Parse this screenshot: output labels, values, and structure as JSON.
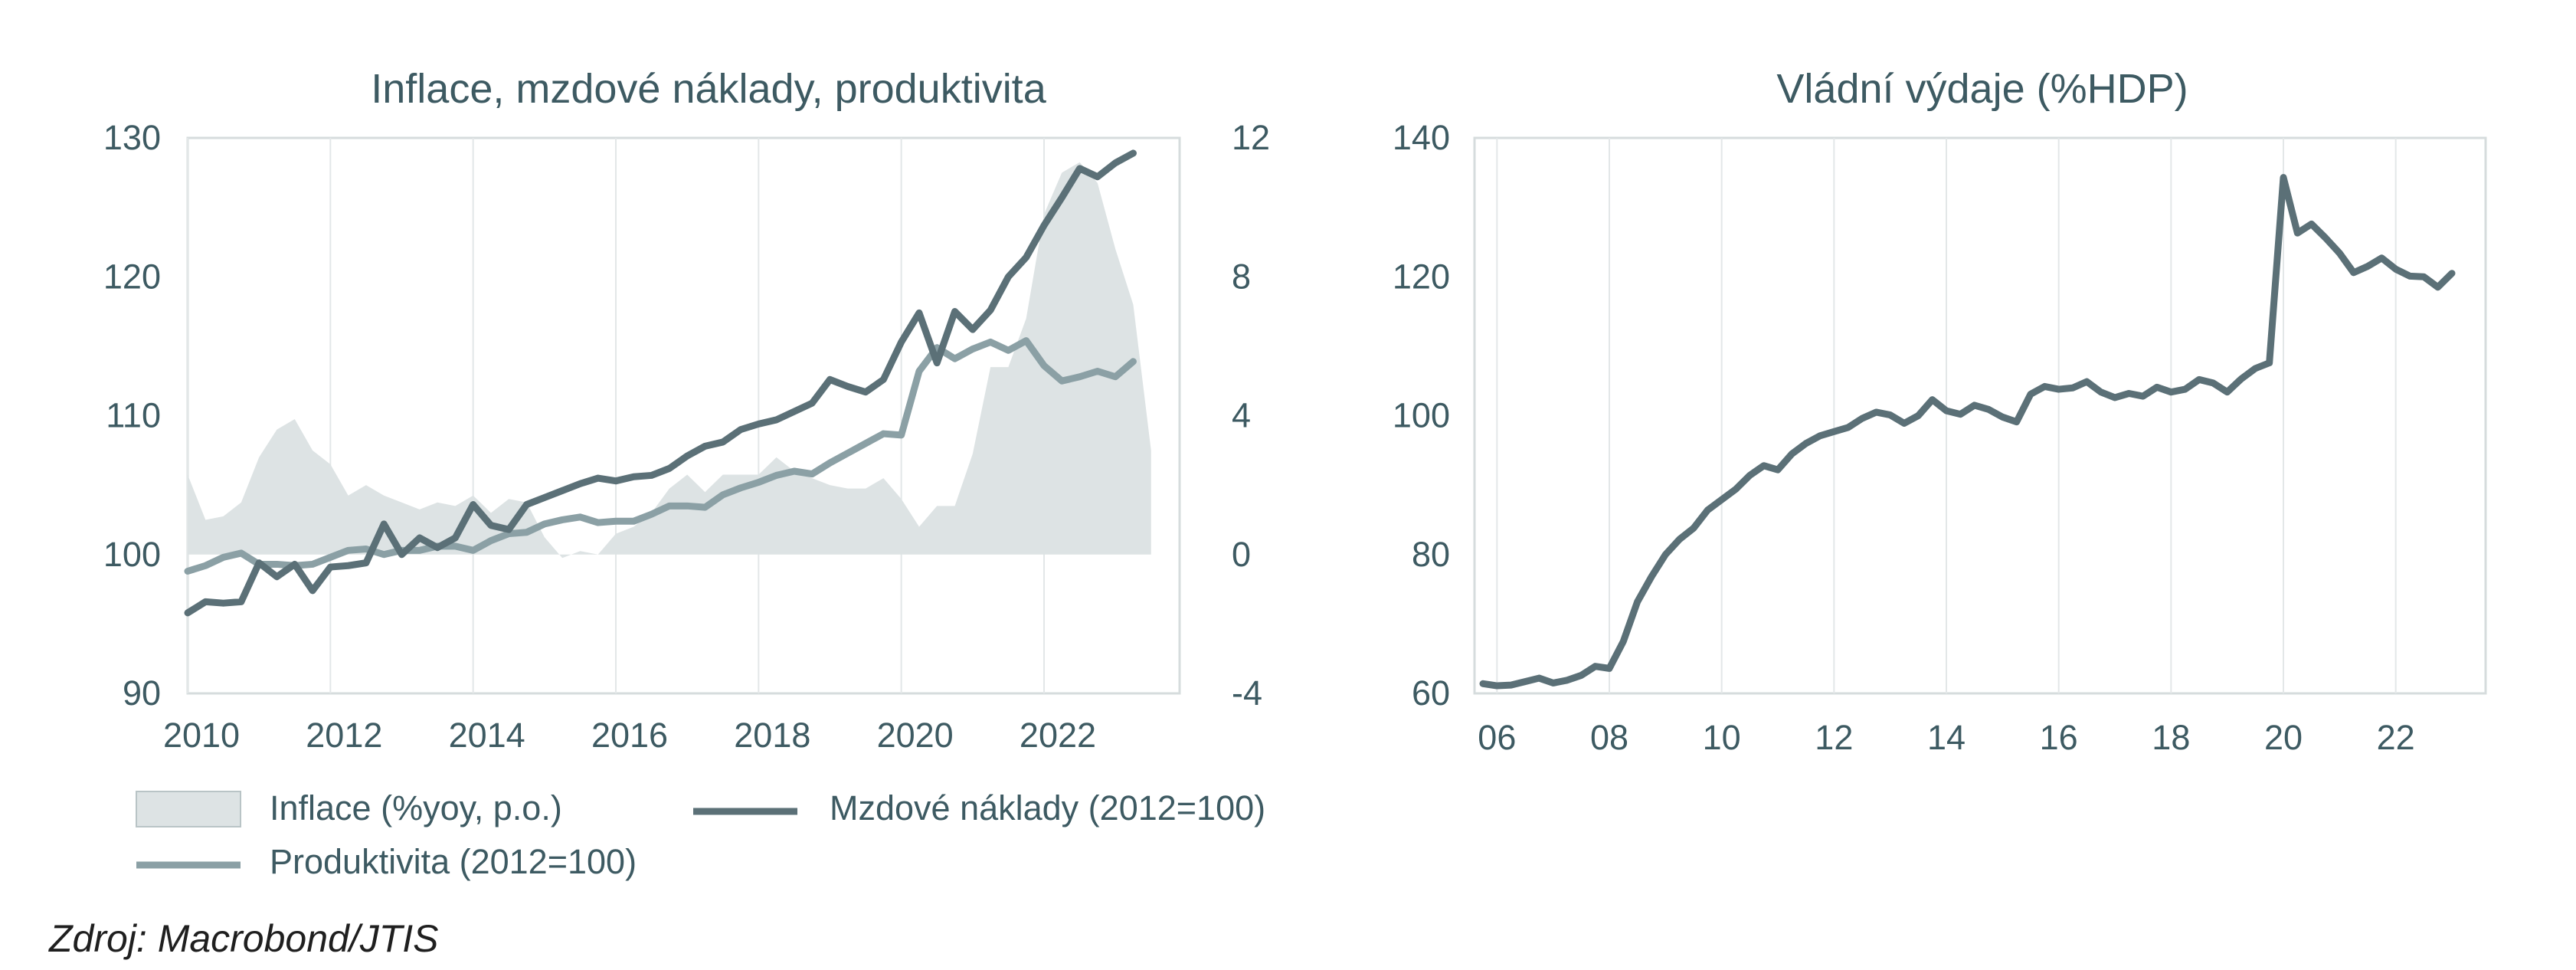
{
  "source_note": "Zdroj: Macrobond/JTIS",
  "colors": {
    "axis_text": "#3d5a62",
    "wage_line": "#5b7077",
    "productivity_line": "#8ba0a5",
    "inflation_fill": "#dde3e4",
    "grid": "#e3e7e8",
    "frame": "#d6dcdd"
  },
  "chart_data": [
    {
      "type": "line",
      "title": "Inflace, mzdové náklady, produktivita",
      "xlim": [
        2010.0,
        2023.9
      ],
      "x_ticks": [
        2010,
        2012,
        2014,
        2016,
        2018,
        2020,
        2022
      ],
      "x_tick_labels": [
        "2010",
        "2012",
        "2014",
        "2016",
        "2018",
        "2020",
        "2022"
      ],
      "ylim": [
        90,
        130
      ],
      "y_ticks": [
        90,
        100,
        110,
        120,
        130
      ],
      "y_tick_labels": [
        "90",
        "100",
        "110",
        "120",
        "130"
      ],
      "y2lim": [
        -4,
        12
      ],
      "y2_ticks": [
        -4,
        0,
        4,
        8,
        12
      ],
      "y2_tick_labels": [
        "-4",
        "0",
        "4",
        "8",
        "12"
      ],
      "grid": true,
      "legend_position": "bottom",
      "legend": [
        {
          "label": "Inflace (%yoy, p.o.)",
          "kind": "area"
        },
        {
          "label": "Mzdové náklady (2012=100)",
          "kind": "line-dark"
        },
        {
          "label": "Produktivita (2012=100)",
          "kind": "line-light"
        }
      ],
      "series": [
        {
          "name": "Inflace (%yoy, p.o.)",
          "type": "area",
          "axis": "right",
          "x": [
            2010.0,
            2010.25,
            2010.5,
            2010.75,
            2011.0,
            2011.25,
            2011.5,
            2011.75,
            2012.0,
            2012.25,
            2012.5,
            2012.75,
            2013.0,
            2013.25,
            2013.5,
            2013.75,
            2014.0,
            2014.25,
            2014.5,
            2014.75,
            2015.0,
            2015.25,
            2015.5,
            2015.75,
            2016.0,
            2016.25,
            2016.5,
            2016.75,
            2017.0,
            2017.25,
            2017.5,
            2017.75,
            2018.0,
            2018.25,
            2018.5,
            2018.75,
            2019.0,
            2019.25,
            2019.5,
            2019.75,
            2020.0,
            2020.25,
            2020.5,
            2020.75,
            2021.0,
            2021.25,
            2021.5,
            2021.75,
            2022.0,
            2022.25,
            2022.5,
            2022.75,
            2023.0,
            2023.25,
            2023.5
          ],
          "values": [
            2.3,
            1.0,
            1.1,
            1.5,
            2.8,
            3.6,
            3.9,
            3.0,
            2.6,
            1.7,
            2.0,
            1.7,
            1.5,
            1.3,
            1.5,
            1.4,
            1.7,
            1.2,
            1.6,
            1.5,
            0.5,
            -0.1,
            0.1,
            0.0,
            0.6,
            0.8,
            1.2,
            1.9,
            2.3,
            1.8,
            2.3,
            2.3,
            2.3,
            2.8,
            2.4,
            2.2,
            2.0,
            1.9,
            1.9,
            2.2,
            1.6,
            0.8,
            1.4,
            1.4,
            2.9,
            5.4,
            5.4,
            6.8,
            9.8,
            11.0,
            11.3,
            10.7,
            8.8,
            7.2,
            3.0
          ]
        },
        {
          "name": "Mzdové náklady (2012=100)",
          "type": "line",
          "axis": "left",
          "x": [
            2010.0,
            2010.25,
            2010.5,
            2010.75,
            2011.0,
            2011.25,
            2011.5,
            2011.75,
            2012.0,
            2012.25,
            2012.5,
            2012.75,
            2013.0,
            2013.25,
            2013.5,
            2013.75,
            2014.0,
            2014.25,
            2014.5,
            2014.75,
            2015.0,
            2015.25,
            2015.5,
            2015.75,
            2016.0,
            2016.25,
            2016.5,
            2016.75,
            2017.0,
            2017.25,
            2017.5,
            2017.75,
            2018.0,
            2018.25,
            2018.5,
            2018.75,
            2019.0,
            2019.25,
            2019.5,
            2019.75,
            2020.0,
            2020.25,
            2020.5,
            2020.75,
            2021.0,
            2021.25,
            2021.5,
            2021.75,
            2022.0,
            2022.25,
            2022.5,
            2022.75,
            2023.0,
            2023.25
          ],
          "values": [
            95.8,
            96.6,
            96.5,
            96.6,
            99.4,
            98.4,
            99.3,
            97.4,
            99.1,
            99.2,
            99.4,
            102.2,
            100.0,
            101.2,
            100.5,
            101.2,
            103.6,
            102.1,
            101.8,
            103.6,
            104.1,
            104.6,
            105.1,
            105.5,
            105.3,
            105.6,
            105.7,
            106.2,
            107.1,
            107.8,
            108.1,
            109.0,
            109.4,
            109.7,
            110.3,
            110.9,
            112.6,
            112.1,
            111.7,
            112.6,
            115.3,
            117.4,
            113.8,
            117.5,
            116.2,
            117.6,
            120.0,
            121.4,
            123.7,
            125.7,
            127.8,
            127.2,
            128.2,
            128.9
          ]
        },
        {
          "name": "Produktivita (2012=100)",
          "type": "line",
          "axis": "left",
          "x": [
            2010.0,
            2010.25,
            2010.5,
            2010.75,
            2011.0,
            2011.25,
            2011.5,
            2011.75,
            2012.0,
            2012.25,
            2012.5,
            2012.75,
            2013.0,
            2013.25,
            2013.5,
            2013.75,
            2014.0,
            2014.25,
            2014.5,
            2014.75,
            2015.0,
            2015.25,
            2015.5,
            2015.75,
            2016.0,
            2016.25,
            2016.5,
            2016.75,
            2017.0,
            2017.25,
            2017.5,
            2017.75,
            2018.0,
            2018.25,
            2018.5,
            2018.75,
            2019.0,
            2019.25,
            2019.5,
            2019.75,
            2020.0,
            2020.25,
            2020.5,
            2020.75,
            2021.0,
            2021.25,
            2021.5,
            2021.75,
            2022.0,
            2022.25,
            2022.5,
            2022.75,
            2023.0,
            2023.25
          ],
          "values": [
            98.8,
            99.2,
            99.8,
            100.1,
            99.3,
            99.3,
            99.2,
            99.3,
            99.8,
            100.3,
            100.4,
            100.0,
            100.3,
            100.3,
            100.6,
            100.6,
            100.3,
            101.0,
            101.5,
            101.6,
            102.2,
            102.5,
            102.7,
            102.3,
            102.4,
            102.4,
            102.9,
            103.5,
            103.5,
            103.4,
            104.3,
            104.8,
            105.2,
            105.7,
            106.0,
            105.8,
            106.6,
            107.3,
            108.0,
            108.7,
            108.6,
            113.2,
            114.9,
            114.1,
            114.8,
            115.3,
            114.7,
            115.4,
            113.6,
            112.5,
            112.8,
            113.2,
            112.8,
            113.9
          ]
        }
      ]
    },
    {
      "type": "line",
      "title": "Vládní výdaje (%HDP)",
      "xlim": [
        2005.6,
        2023.6
      ],
      "x_ticks": [
        2006,
        2008,
        2010,
        2012,
        2014,
        2016,
        2018,
        2020,
        2022
      ],
      "x_tick_labels": [
        "06",
        "08",
        "10",
        "12",
        "14",
        "16",
        "18",
        "20",
        "22"
      ],
      "ylim": [
        60,
        140
      ],
      "y_ticks": [
        60,
        80,
        100,
        120,
        140
      ],
      "y_tick_labels": [
        "60",
        "80",
        "100",
        "120",
        "140"
      ],
      "grid": true,
      "series": [
        {
          "type": "line",
          "x": [
            2005.75,
            2006.0,
            2006.25,
            2006.5,
            2006.75,
            2007.0,
            2007.25,
            2007.5,
            2007.75,
            2008.0,
            2008.25,
            2008.5,
            2008.75,
            2009.0,
            2009.25,
            2009.5,
            2009.75,
            2010.0,
            2010.25,
            2010.5,
            2010.75,
            2011.0,
            2011.25,
            2011.5,
            2011.75,
            2012.0,
            2012.25,
            2012.5,
            2012.75,
            2013.0,
            2013.25,
            2013.5,
            2013.75,
            2014.0,
            2014.25,
            2014.5,
            2014.75,
            2015.0,
            2015.25,
            2015.5,
            2015.75,
            2016.0,
            2016.25,
            2016.5,
            2016.75,
            2017.0,
            2017.25,
            2017.5,
            2017.75,
            2018.0,
            2018.25,
            2018.5,
            2018.75,
            2019.0,
            2019.25,
            2019.5,
            2019.75,
            2020.0,
            2020.25,
            2020.5,
            2020.75,
            2021.0,
            2021.25,
            2021.5,
            2021.75,
            2022.0,
            2022.25,
            2022.5,
            2022.75,
            2023.0
          ],
          "values": [
            61.4,
            61.1,
            61.2,
            61.7,
            62.2,
            61.5,
            61.9,
            62.6,
            63.9,
            63.6,
            67.5,
            73.2,
            76.8,
            80.0,
            82.2,
            83.8,
            86.4,
            87.9,
            89.4,
            91.4,
            92.8,
            92.2,
            94.5,
            96.0,
            97.1,
            97.7,
            98.3,
            99.6,
            100.5,
            100.1,
            98.9,
            100.0,
            102.3,
            100.7,
            100.2,
            101.5,
            100.9,
            99.8,
            99.1,
            103.1,
            104.2,
            103.8,
            104.0,
            104.9,
            103.4,
            102.6,
            103.2,
            102.8,
            104.1,
            103.4,
            103.8,
            105.2,
            104.7,
            103.4,
            105.3,
            106.8,
            107.6,
            134.3,
            126.3,
            127.6,
            125.6,
            123.4,
            120.6,
            121.5,
            122.7,
            121.1,
            120.1,
            120.0,
            118.5,
            120.5
          ]
        }
      ]
    }
  ]
}
